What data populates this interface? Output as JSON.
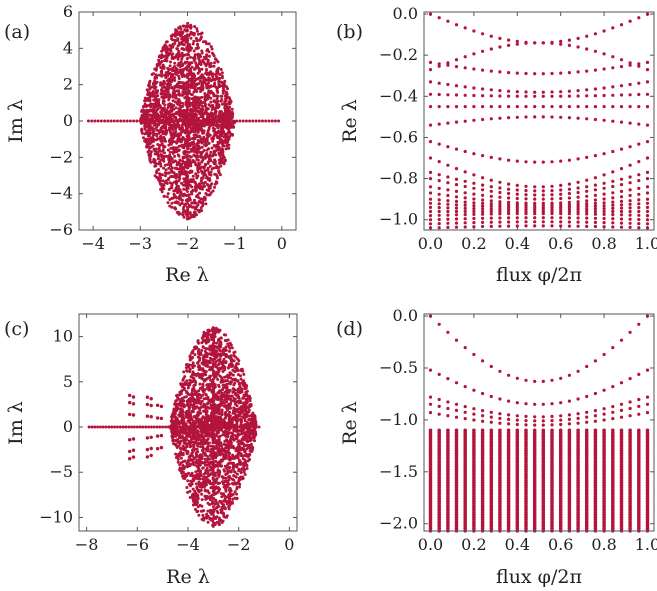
{
  "figure": {
    "panels": [
      "(a)",
      "(b)",
      "(c)",
      "(d)"
    ],
    "point_color": "#b3143c"
  },
  "chart_data": [
    {
      "id": "a",
      "panel_label": "(a)",
      "type": "scatter",
      "xlabel": "Re λ",
      "ylabel": "Im λ",
      "xlim": [
        -4.3,
        0.3
      ],
      "ylim": [
        -6,
        6
      ],
      "xticks": [
        -4,
        -3,
        -2,
        -1,
        0
      ],
      "yticks": [
        -6,
        -4,
        -2,
        0,
        2,
        4,
        6
      ],
      "cloud": {
        "center_x": -2.0,
        "radius_x": 1.0,
        "radius_y": 5.4,
        "n_points": 2600
      },
      "real_axis_points": {
        "x_min": -4.1,
        "x_max": 0.0
      },
      "grid": false
    },
    {
      "id": "b",
      "panel_label": "(b)",
      "type": "scatter",
      "xlabel": "flux φ/2π",
      "ylabel": "Re λ",
      "xlim": [
        -0.03,
        1.03
      ],
      "ylim": [
        -1.05,
        0.01
      ],
      "xticks": [
        0.0,
        0.2,
        0.4,
        0.6,
        0.8,
        1.0
      ],
      "yticks": [
        0.0,
        -0.2,
        -0.4,
        -0.6,
        -0.8,
        -1.0
      ],
      "flux_steps": 25,
      "branches": [
        {
          "at_0": 0.0,
          "at_half": -0.14
        },
        {
          "at_0": -0.27,
          "at_half": -0.14
        },
        {
          "at_0": -0.235,
          "at_half": -0.29
        },
        {
          "at_0": -0.33,
          "at_half": -0.38
        },
        {
          "at_0": -0.39,
          "at_half": -0.4
        },
        {
          "at_0": -0.45,
          "at_half": -0.45
        },
        {
          "at_0": -0.54,
          "at_half": -0.5
        },
        {
          "at_0": -0.62,
          "at_half": -0.72
        },
        {
          "at_0": -0.7,
          "at_half": -0.84
        },
        {
          "at_0": -0.77,
          "at_half": -0.86
        },
        {
          "at_0": -0.8,
          "at_half": -0.88
        },
        {
          "at_0": -0.84,
          "at_half": -0.9
        },
        {
          "at_0": -0.87,
          "at_half": -0.92
        },
        {
          "at_0": -0.9,
          "at_half": -0.93
        },
        {
          "at_0": -0.92,
          "at_half": -0.94
        },
        {
          "at_0": -0.94,
          "at_half": -0.95
        },
        {
          "at_0": -0.96,
          "at_half": -0.96
        },
        {
          "at_0": -0.98,
          "at_half": -0.97
        },
        {
          "at_0": -1.0,
          "at_half": -0.99
        },
        {
          "at_0": -1.02,
          "at_half": -1.01
        },
        {
          "at_0": -1.04,
          "at_half": -1.03
        }
      ],
      "grid": false
    },
    {
      "id": "c",
      "panel_label": "(c)",
      "type": "scatter",
      "xlabel": "Re λ",
      "ylabel": "Im λ",
      "xlim": [
        -8.3,
        0.3
      ],
      "ylim": [
        -11.5,
        12.5
      ],
      "xticks": [
        -8,
        -6,
        -4,
        -2,
        0
      ],
      "yticks": [
        -10,
        -5,
        0,
        5,
        10
      ],
      "cloud": {
        "center_x": -3.0,
        "radius_x": 1.7,
        "radius_y": 11.0,
        "n_points": 2600
      },
      "side_clusters": [
        {
          "x": -6.3,
          "y": [
            -3.5,
            -2.7,
            -1.4,
            1.4,
            2.7,
            3.5
          ]
        },
        {
          "x": -5.6,
          "y": [
            -3.3,
            -2.5,
            -1.2,
            1.2,
            2.5,
            3.3
          ]
        },
        {
          "x": -5.2,
          "y": [
            -2.4,
            -1.0,
            1.0,
            2.4
          ]
        }
      ],
      "real_axis_points": {
        "x_min": -7.9,
        "x_max": -1.2
      },
      "grid": false
    },
    {
      "id": "d",
      "panel_label": "(d)",
      "type": "scatter",
      "xlabel": "flux φ/2π",
      "ylabel": "Re λ",
      "xlim": [
        -0.03,
        1.03
      ],
      "ylim": [
        -2.07,
        0.02
      ],
      "xticks": [
        0.0,
        0.2,
        0.4,
        0.6,
        0.8,
        1.0
      ],
      "yticks": [
        0.0,
        -0.5,
        -1.0,
        -1.5,
        -2.0
      ],
      "flux_steps": 25,
      "branches": [
        {
          "at_0": 0.0,
          "at_half": -0.63
        },
        {
          "at_0": -0.52,
          "at_half": -0.85
        },
        {
          "at_0": -0.78,
          "at_half": -0.97
        },
        {
          "at_0": -0.85,
          "at_half": -1.01
        },
        {
          "at_0": -0.93,
          "at_half": -1.05
        }
      ],
      "band": {
        "top": -1.1,
        "bottom": -2.07
      },
      "grid": false
    }
  ]
}
